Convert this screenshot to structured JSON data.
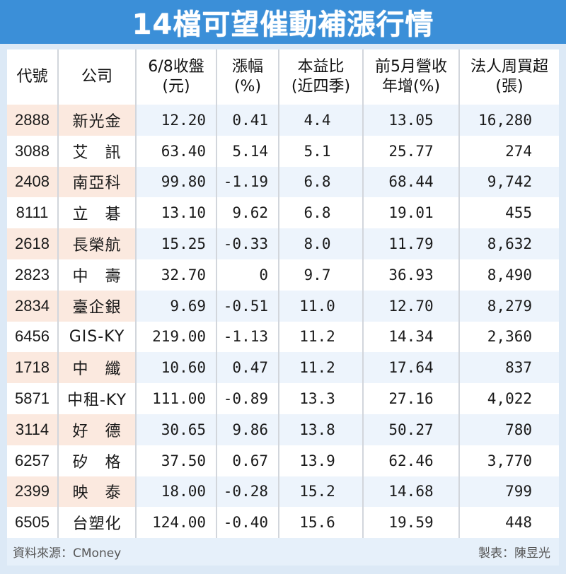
{
  "title": "14檔可望催動補漲行情",
  "header": {
    "code": "代號",
    "company": "公司",
    "close_l1": "6/8收盤",
    "close_l2": "(元)",
    "change_l1": "漲幅",
    "change_l2": "(%)",
    "pe_l1": "本益比",
    "pe_l2": "(近四季)",
    "rev_l1": "前5月營收",
    "rev_l2": "年增(%)",
    "inst_l1": "法人周買超",
    "inst_l2": "(張)"
  },
  "rows": [
    {
      "code": "2888",
      "name": "新光金",
      "close": "12.20",
      "change": "0.41",
      "pe": "4.4",
      "rev": "13.05",
      "inst": "16,280"
    },
    {
      "code": "3088",
      "name": "艾　訊",
      "close": "63.40",
      "change": "5.14",
      "pe": "5.1",
      "rev": "25.77",
      "inst": "274"
    },
    {
      "code": "2408",
      "name": "南亞科",
      "close": "99.80",
      "change": "-1.19",
      "pe": "6.8",
      "rev": "68.44",
      "inst": "9,742"
    },
    {
      "code": "8111",
      "name": "立　碁",
      "close": "13.10",
      "change": "9.62",
      "pe": "6.8",
      "rev": "19.01",
      "inst": "455"
    },
    {
      "code": "2618",
      "name": "長榮航",
      "close": "15.25",
      "change": "-0.33",
      "pe": "8.0",
      "rev": "11.79",
      "inst": "8,632"
    },
    {
      "code": "2823",
      "name": "中　壽",
      "close": "32.70",
      "change": "0",
      "pe": "9.7",
      "rev": "36.93",
      "inst": "8,490"
    },
    {
      "code": "2834",
      "name": "臺企銀",
      "close": "9.69",
      "change": "-0.51",
      "pe": "11.0",
      "rev": "12.70",
      "inst": "8,279"
    },
    {
      "code": "6456",
      "name": "GIS-KY",
      "close": "219.00",
      "change": "-1.13",
      "pe": "11.2",
      "rev": "14.34",
      "inst": "2,360"
    },
    {
      "code": "1718",
      "name": "中　纖",
      "close": "10.60",
      "change": "0.47",
      "pe": "11.2",
      "rev": "17.64",
      "inst": "837"
    },
    {
      "code": "5871",
      "name": "中租-KY",
      "close": "111.00",
      "change": "-0.89",
      "pe": "13.3",
      "rev": "27.16",
      "inst": "4,022"
    },
    {
      "code": "3114",
      "name": "好　德",
      "close": "30.65",
      "change": "9.86",
      "pe": "13.8",
      "rev": "50.27",
      "inst": "780"
    },
    {
      "code": "6257",
      "name": "矽　格",
      "close": "37.50",
      "change": "0.67",
      "pe": "13.9",
      "rev": "62.46",
      "inst": "3,770"
    },
    {
      "code": "2399",
      "name": "映　泰",
      "close": "18.00",
      "change": "-0.28",
      "pe": "15.2",
      "rev": "14.68",
      "inst": "799"
    },
    {
      "code": "6505",
      "name": "台塑化",
      "close": "124.00",
      "change": "-0.40",
      "pe": "15.6",
      "rev": "19.59",
      "inst": "448"
    }
  ],
  "footer": {
    "source": "資料來源：CMoney",
    "author": "製表：陳昱光"
  },
  "colors": {
    "title_bg": "#3b8fd8",
    "frame_bg": "#dce9f6",
    "highlight_row_left": "#fbe9df",
    "highlight_row_right": "#edf4fc"
  }
}
